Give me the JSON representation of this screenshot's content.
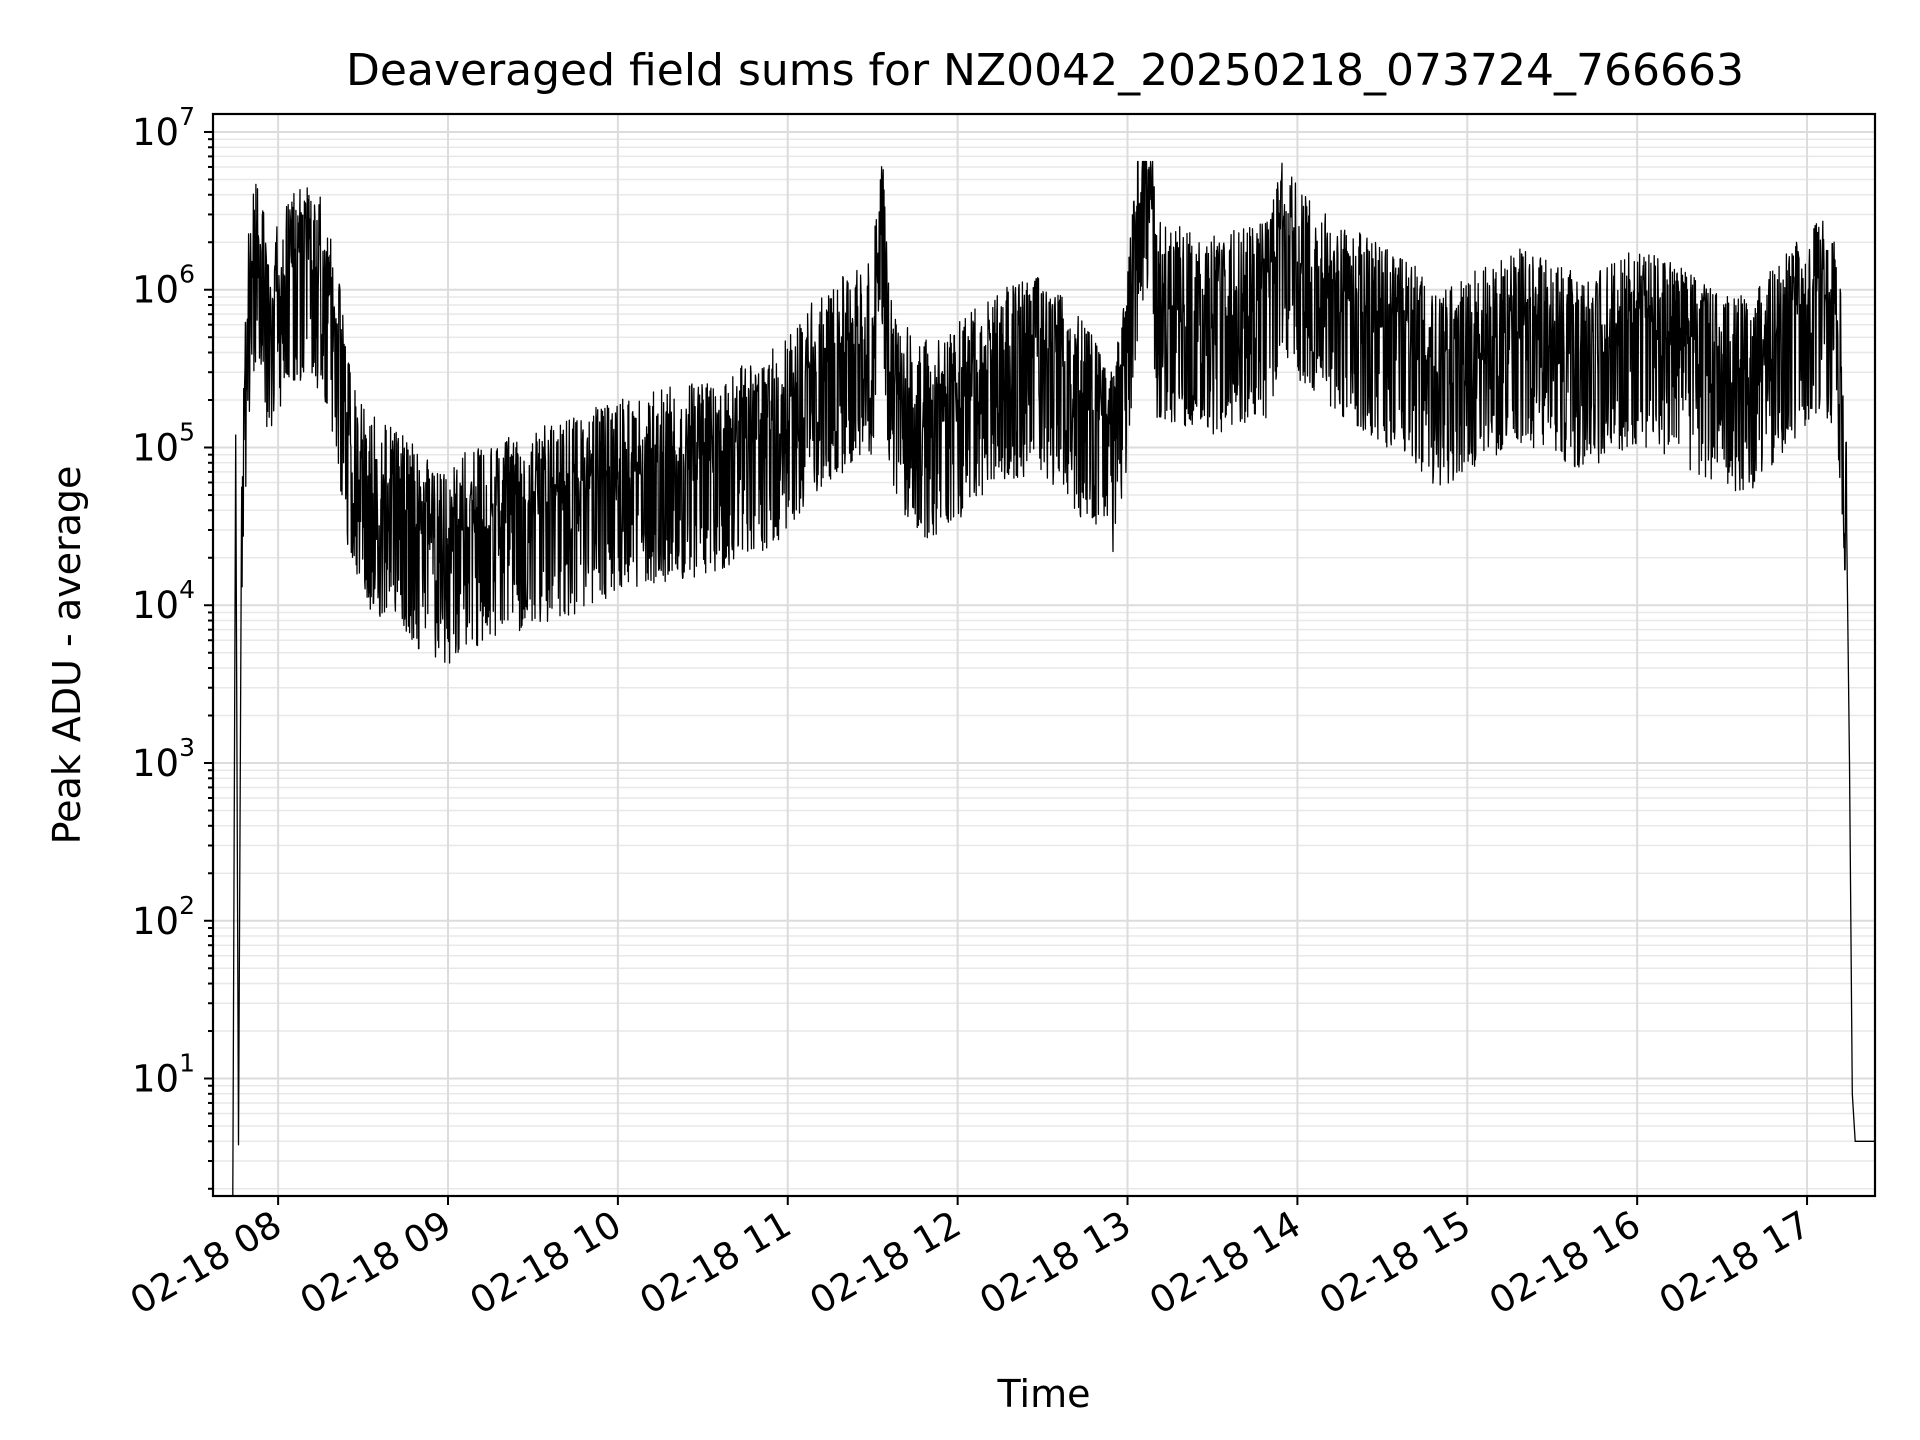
{
  "chart_data": {
    "type": "line",
    "title": "Deaveraged field sums for NZ0042_20250218_073724_766663",
    "xlabel": "Time",
    "ylabel": "Peak ADU - average",
    "y_scale": "log",
    "ylim": [
      1.8,
      13000000
    ],
    "xlim": [
      "2025-02-18 07:37",
      "2025-02-18 17:24"
    ],
    "grid": true,
    "grid_minor": true,
    "x_ticks": [
      "02-18 08",
      "02-18 09",
      "02-18 10",
      "02-18 11",
      "02-18 12",
      "02-18 13",
      "02-18 14",
      "02-18 15",
      "02-18 16",
      "02-18 17"
    ],
    "y_ticks": [
      {
        "value": 10,
        "base": "10",
        "exp": "1"
      },
      {
        "value": 100,
        "base": "10",
        "exp": "2"
      },
      {
        "value": 1000,
        "base": "10",
        "exp": "3"
      },
      {
        "value": 10000,
        "base": "10",
        "exp": "4"
      },
      {
        "value": 100000,
        "base": "10",
        "exp": "5"
      },
      {
        "value": 1000000,
        "base": "10",
        "exp": "6"
      },
      {
        "value": 10000000,
        "base": "10",
        "exp": "7"
      }
    ],
    "series": [
      {
        "color": "#000000",
        "points": [
          [
            "07:44",
            1.8
          ],
          [
            "07:45",
            120000
          ],
          [
            "07:46",
            3.8
          ],
          [
            "07:47",
            20000
          ],
          [
            "07:49",
            600000
          ],
          [
            "07:51",
            1200000
          ],
          [
            "07:53",
            2200000
          ],
          [
            "07:55",
            1400000
          ],
          [
            "07:57",
            400000
          ],
          [
            "08:00",
            1000000
          ],
          [
            "08:05",
            1400000
          ],
          [
            "08:10",
            1500000
          ],
          [
            "08:15",
            1300000
          ],
          [
            "08:20",
            600000
          ],
          [
            "08:25",
            120000
          ],
          [
            "08:30",
            60000
          ],
          [
            "08:35",
            50000
          ],
          [
            "08:40",
            45000
          ],
          [
            "08:45",
            40000
          ],
          [
            "08:50",
            30000
          ],
          [
            "08:55",
            27000
          ],
          [
            "09:00",
            24000
          ],
          [
            "09:05",
            30000
          ],
          [
            "09:10",
            32000
          ],
          [
            "09:15",
            34000
          ],
          [
            "09:20",
            38000
          ],
          [
            "09:25",
            40000
          ],
          [
            "09:30",
            42000
          ],
          [
            "09:35",
            45000
          ],
          [
            "09:40",
            48000
          ],
          [
            "09:45",
            50000
          ],
          [
            "09:50",
            55000
          ],
          [
            "09:55",
            62000
          ],
          [
            "10:00",
            70000
          ],
          [
            "10:10",
            75000
          ],
          [
            "10:20",
            80000
          ],
          [
            "10:30",
            90000
          ],
          [
            "10:40",
            100000
          ],
          [
            "10:50",
            120000
          ],
          [
            "11:00",
            160000
          ],
          [
            "11:10",
            300000
          ],
          [
            "11:20",
            400000
          ],
          [
            "11:30",
            500000
          ],
          [
            "11:33",
            3500000
          ],
          [
            "11:36",
            300000
          ],
          [
            "11:40",
            200000
          ],
          [
            "11:50",
            150000
          ],
          [
            "12:00",
            200000
          ],
          [
            "12:10",
            300000
          ],
          [
            "12:20",
            350000
          ],
          [
            "12:30",
            400000
          ],
          [
            "12:40",
            250000
          ],
          [
            "12:50",
            150000
          ],
          [
            "12:55",
            100000
          ],
          [
            "13:00",
            400000
          ],
          [
            "13:04",
            3500000
          ],
          [
            "13:08",
            5000000
          ],
          [
            "13:10",
            900000
          ],
          [
            "13:20",
            800000
          ],
          [
            "13:30",
            700000
          ],
          [
            "13:40",
            800000
          ],
          [
            "13:50",
            900000
          ],
          [
            "13:55",
            2500000
          ],
          [
            "14:00",
            1500000
          ],
          [
            "14:10",
            1000000
          ],
          [
            "14:20",
            800000
          ],
          [
            "14:30",
            600000
          ],
          [
            "14:40",
            500000
          ],
          [
            "14:50",
            300000
          ],
          [
            "15:00",
            400000
          ],
          [
            "15:10",
            500000
          ],
          [
            "15:20",
            600000
          ],
          [
            "15:30",
            500000
          ],
          [
            "15:40",
            400000
          ],
          [
            "15:50",
            500000
          ],
          [
            "16:00",
            600000
          ],
          [
            "16:10",
            500000
          ],
          [
            "16:20",
            400000
          ],
          [
            "16:30",
            300000
          ],
          [
            "16:40",
            300000
          ],
          [
            "16:50",
            500000
          ],
          [
            "17:00",
            800000
          ],
          [
            "17:05",
            900000
          ],
          [
            "17:08",
            800000
          ],
          [
            "17:10",
            700000
          ],
          [
            "17:12",
            300000
          ],
          [
            "17:14",
            30000
          ],
          [
            "17:15",
            1000
          ],
          [
            "17:16",
            8
          ],
          [
            "17:17",
            4
          ],
          [
            "17:24",
            4
          ]
        ]
      }
    ]
  }
}
